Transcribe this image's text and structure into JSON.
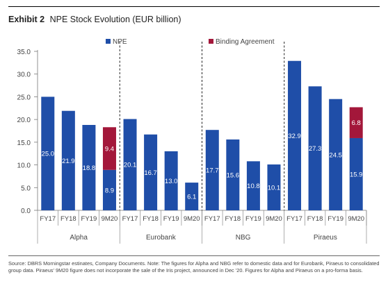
{
  "header": {
    "exhibit_label": "Exhibit 2",
    "title": "NPE Stock Evolution (EUR billion)"
  },
  "colors": {
    "npe": "#1f4ea8",
    "binding": "#a3173a",
    "axis": "#777777",
    "divider": "#222222",
    "text": "#444444"
  },
  "chart_data": {
    "type": "bar",
    "stacked": true,
    "title": "NPE Stock Evolution (EUR billion)",
    "ylim": [
      0,
      35
    ],
    "yticks": [
      "0.0",
      "5.0",
      "10.0",
      "15.0",
      "20.0",
      "25.0",
      "30.0",
      "35.0"
    ],
    "grid": false,
    "legend_position": "top",
    "groups": [
      {
        "name": "Alpha",
        "categories": [
          "FY17",
          "FY18",
          "FY19",
          "9M20"
        ]
      },
      {
        "name": "Eurobank",
        "categories": [
          "FY17",
          "FY18",
          "FY19",
          "9M20"
        ]
      },
      {
        "name": "NBG",
        "categories": [
          "FY17",
          "FY18",
          "FY19",
          "9M20"
        ]
      },
      {
        "name": "Piraeus",
        "categories": [
          "FY17",
          "FY18",
          "FY19",
          "9M20"
        ]
      }
    ],
    "series": [
      {
        "name": "NPE",
        "values": [
          25.0,
          21.9,
          18.8,
          8.9,
          20.1,
          16.7,
          13.0,
          6.1,
          17.7,
          15.6,
          10.8,
          10.1,
          32.9,
          27.3,
          24.5,
          15.9
        ],
        "labels": [
          "25.0",
          "21.9",
          "18.8",
          "8.9",
          "20.1",
          "16.7",
          "13.0",
          "6.1",
          "17.7",
          "15.6",
          "10.8",
          "10.1",
          "32.9",
          "27.3",
          "24.5",
          "15.9"
        ]
      },
      {
        "name": "Binding Agreement",
        "values": [
          0,
          0,
          0,
          9.4,
          0,
          0,
          0,
          0,
          0,
          0,
          0,
          0,
          0,
          0,
          0,
          6.8
        ],
        "labels": [
          "",
          "",
          "",
          "9.4",
          "",
          "",
          "",
          "",
          "",
          "",
          "",
          "",
          "",
          "",
          "",
          "6.8"
        ]
      }
    ]
  },
  "source_note": "Source: DBRS Morningstar estinates, Company Documents. Note: The figures for Alpha and NBG refer to domestic data and for Eurobank, Piraeus to consolidated group data. Piraeus' 9M20 figure does not incorporate the sale of the Iris project, announced in Dec '20. Figures for Alpha and Piraeus on a pro-forma basis."
}
